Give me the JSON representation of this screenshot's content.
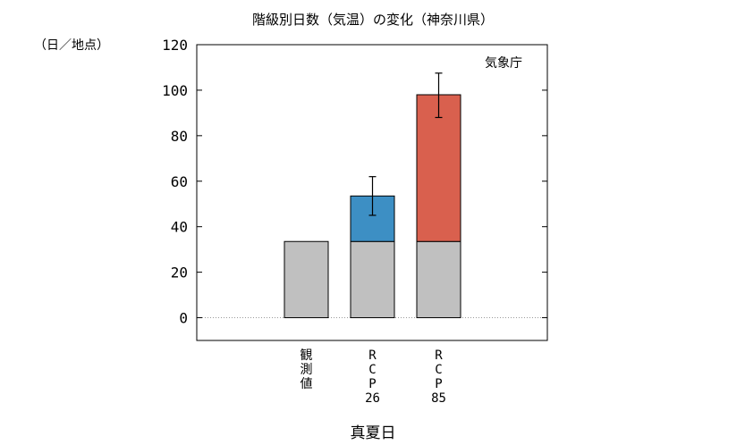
{
  "chart_data": {
    "type": "bar",
    "title": "階級別日数（気温）の変化（神奈川県）",
    "ylabel": "（日／地点）",
    "xlabel": "真夏日",
    "source": "気象庁",
    "ylim": [
      -10,
      120
    ],
    "yticks": [
      "0",
      "20",
      "40",
      "60",
      "80",
      "100",
      "120"
    ],
    "categories": [
      {
        "label_lines": [
          "観",
          "測",
          "値"
        ]
      },
      {
        "label_lines": [
          "R",
          "C",
          "P",
          "26"
        ]
      },
      {
        "label_lines": [
          "R",
          "C",
          "P",
          "85"
        ]
      }
    ],
    "series": [
      {
        "key": "base",
        "values": [
          33.5,
          33.5,
          33.5
        ],
        "color": "#c0c0c0"
      },
      {
        "key": "increase",
        "values": [
          0,
          20,
          64.5
        ],
        "colors": [
          "#c0c0c0",
          "#3d8fc4",
          "#d9604e"
        ]
      }
    ],
    "error_bars": [
      null,
      [
        45,
        62
      ],
      [
        88,
        107.5
      ]
    ],
    "grid": false,
    "zero_line": "dotted"
  }
}
